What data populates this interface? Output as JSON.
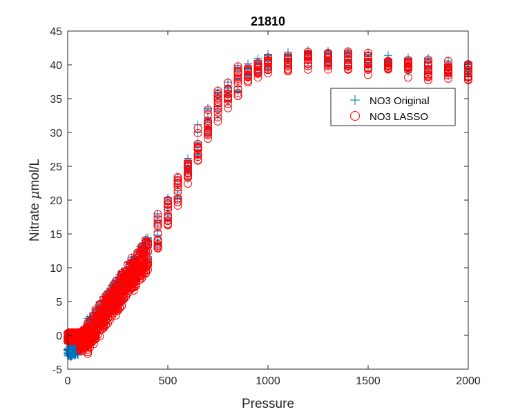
{
  "chart_data": {
    "type": "scatter",
    "title": "21810",
    "xlabel": "Pressure",
    "ylabel_prefix": "Nitrate ",
    "ylabel_mu": "μ",
    "ylabel_suffix": "mol/L",
    "xlim": [
      0,
      2000
    ],
    "ylim": [
      -5,
      45
    ],
    "xticks": [
      0,
      500,
      1000,
      1500,
      2000
    ],
    "yticks": [
      -5,
      0,
      5,
      10,
      15,
      20,
      25,
      30,
      35,
      40,
      45
    ],
    "grid": false,
    "legend_position": "top-right",
    "profile": {
      "pressure": [
        0,
        50,
        100,
        150,
        200,
        250,
        300,
        350,
        400,
        450,
        500,
        550,
        600,
        650,
        700,
        750,
        800,
        850,
        900,
        950,
        1000,
        1100,
        1200,
        1300,
        1400,
        1500,
        1600,
        1700,
        1800,
        1900,
        2000
      ],
      "nitrate": [
        -1.5,
        -1.0,
        0.5,
        2.5,
        4.5,
        6.5,
        8.5,
        10.5,
        12.5,
        15.5,
        18.5,
        21.5,
        25.0,
        28.5,
        32.0,
        34.5,
        36.5,
        38.0,
        39.0,
        39.8,
        40.5,
        41.0,
        41.0,
        41.0,
        40.8,
        40.7,
        40.3,
        40.0,
        39.8,
        39.5,
        39.2
      ]
    },
    "series": [
      {
        "name": "NO3 Original",
        "marker": "plus",
        "color": "#0072BD"
      },
      {
        "name": "NO3 LASSO",
        "marker": "circle",
        "color": "#FF0000"
      }
    ]
  }
}
